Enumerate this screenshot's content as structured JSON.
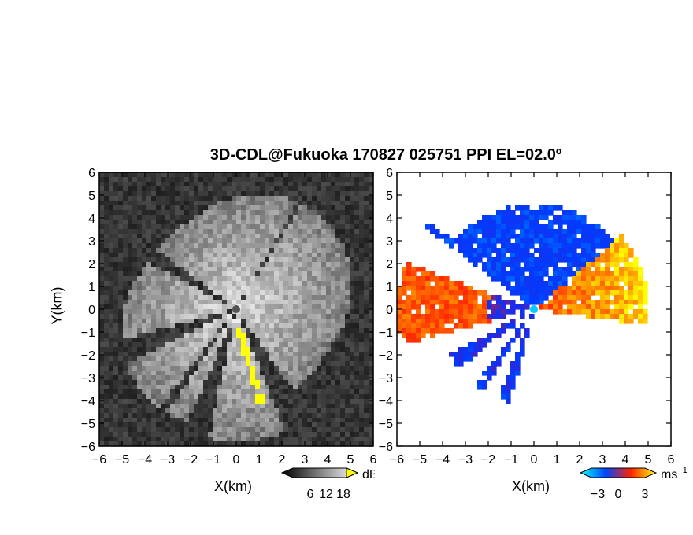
{
  "title": "3D-CDL@Fukuoka 170827 025751 PPI EL=02.0º",
  "chart_data": [
    {
      "type": "heatmap",
      "panel": "left",
      "description_field": "reflectivity / SNR PPI (grayscale)",
      "xlabel": "X(km)",
      "ylabel": "Y(km)",
      "xlim": [
        -6,
        6
      ],
      "ylim": [
        -6,
        6
      ],
      "x_ticks": [
        "−6",
        "−5",
        "−4",
        "−3",
        "−2",
        "−1",
        "0",
        "1",
        "2",
        "3",
        "4",
        "5",
        "6"
      ],
      "y_ticks": [
        "6",
        "5",
        "4",
        "3",
        "2",
        "1",
        "0",
        "−1",
        "−2",
        "−3",
        "−4",
        "−5",
        "−6"
      ],
      "colorbar": {
        "unit": "dB",
        "ticks": [
          "6",
          "12",
          "18"
        ],
        "colors": [
          "#000000",
          "#ffffff"
        ]
      },
      "highlight_color": "#ffff00"
    },
    {
      "type": "heatmap",
      "panel": "right",
      "description_field": "radial velocity PPI",
      "xlabel": "X(km)",
      "xlim": [
        -6,
        6
      ],
      "ylim": [
        -6,
        6
      ],
      "x_ticks": [
        "−6",
        "−5",
        "−4",
        "−3",
        "−2",
        "−1",
        "0",
        "1",
        "2",
        "3",
        "4",
        "5",
        "6"
      ],
      "y_ticks": [
        "6",
        "5",
        "4",
        "3",
        "2",
        "1",
        "0",
        "−1",
        "−2",
        "−3",
        "−4",
        "−5",
        "−6"
      ],
      "colorbar": {
        "unit": "ms⁻¹",
        "ticks": [
          "−3",
          "0",
          "3"
        ],
        "colors": [
          "#00ffff",
          "#0044ff",
          "#ff2200",
          "#ffff00"
        ]
      }
    }
  ],
  "left_xlabel": "X(km)",
  "left_ylabel": "Y(km)",
  "right_xlabel": "X(km)",
  "cb_left_unit": "dB",
  "cb_right_unit": "ms",
  "cb_right_exp": "−1"
}
